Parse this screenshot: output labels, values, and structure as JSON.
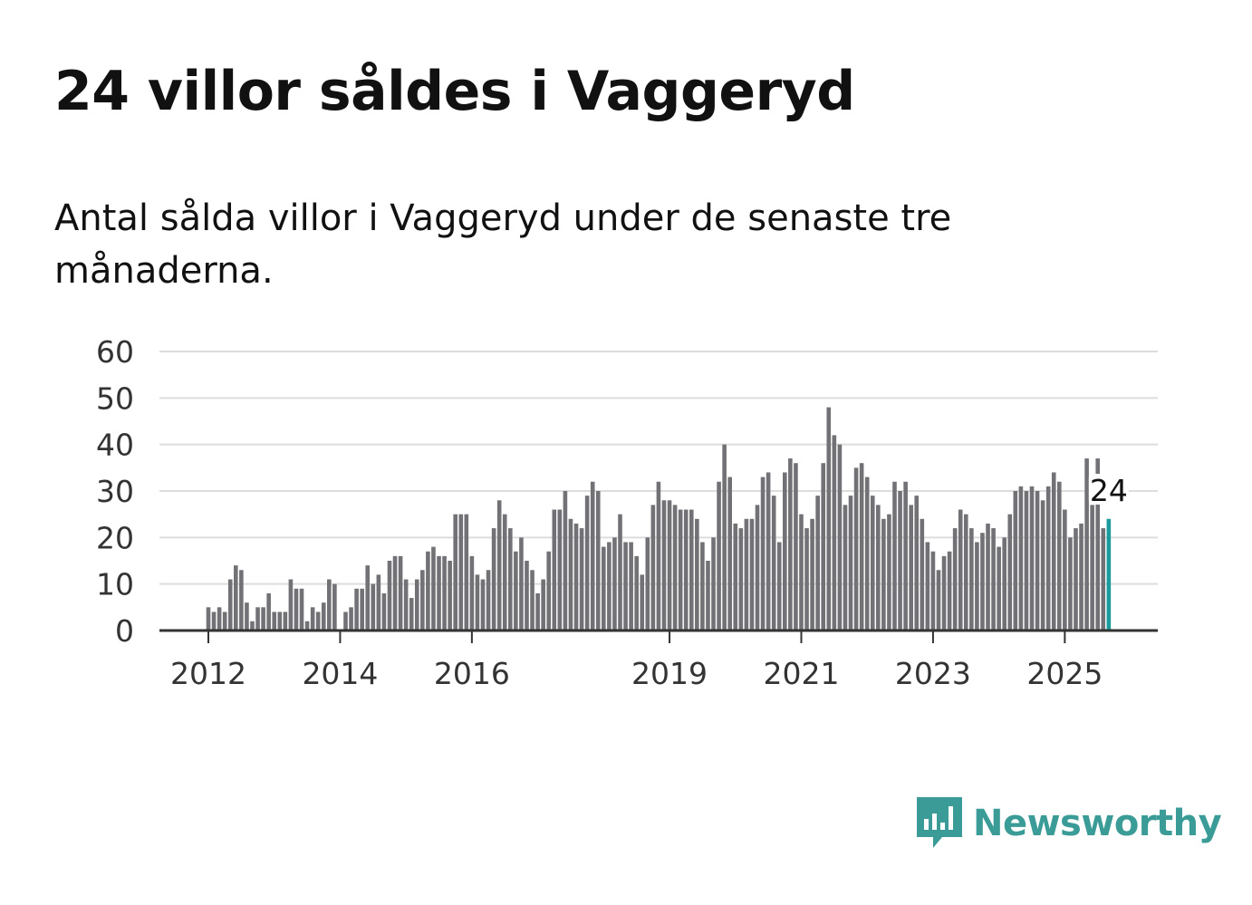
{
  "title": "24 villor såldes i Vaggeryd",
  "subtitle": "Antal sålda villor i Vaggeryd under de senaste tre månaderna.",
  "brand": {
    "name": "Newsworthy",
    "color": "#3b9b97"
  },
  "colors": {
    "bar": "#727176",
    "highlight": "#1b9b9c",
    "grid": "#dddddd",
    "axis": "#333333"
  },
  "chart_data": {
    "type": "bar",
    "title": "24 villor såldes i Vaggeryd",
    "xlabel": "",
    "ylabel": "",
    "ylim": [
      0,
      60
    ],
    "yticks": [
      0,
      10,
      20,
      30,
      40,
      50,
      60
    ],
    "xticks": [
      {
        "label": "2012",
        "index": 0
      },
      {
        "label": "2014",
        "index": 24
      },
      {
        "label": "2016",
        "index": 48
      },
      {
        "label": "2019",
        "index": 84
      },
      {
        "label": "2021",
        "index": 108
      },
      {
        "label": "2023",
        "index": 132
      },
      {
        "label": "2025",
        "index": 156
      }
    ],
    "first_month": "2012-01",
    "values": [
      5,
      4,
      5,
      4,
      11,
      14,
      13,
      6,
      2,
      5,
      5,
      8,
      4,
      4,
      4,
      11,
      9,
      9,
      2,
      5,
      4,
      6,
      11,
      10,
      0,
      4,
      5,
      9,
      9,
      14,
      10,
      12,
      8,
      15,
      16,
      16,
      11,
      7,
      11,
      13,
      17,
      18,
      16,
      16,
      15,
      25,
      25,
      25,
      16,
      12,
      11,
      13,
      22,
      28,
      25,
      22,
      17,
      20,
      15,
      13,
      8,
      11,
      17,
      26,
      26,
      30,
      24,
      23,
      22,
      29,
      32,
      30,
      18,
      19,
      20,
      25,
      19,
      19,
      16,
      12,
      20,
      27,
      32,
      28,
      28,
      27,
      26,
      26,
      26,
      24,
      19,
      15,
      20,
      32,
      40,
      33,
      23,
      22,
      24,
      24,
      27,
      33,
      34,
      29,
      19,
      34,
      37,
      36,
      25,
      22,
      24,
      29,
      36,
      48,
      42,
      40,
      27,
      29,
      35,
      36,
      33,
      29,
      27,
      24,
      25,
      32,
      30,
      32,
      27,
      29,
      24,
      19,
      17,
      13,
      16,
      17,
      22,
      26,
      25,
      22,
      19,
      21,
      23,
      22,
      18,
      20,
      25,
      30,
      31,
      30,
      31,
      30,
      28,
      31,
      34,
      32,
      26,
      20,
      22,
      23,
      37,
      27,
      37,
      22,
      24
    ],
    "highlight_index": 164,
    "highlight_label": "24"
  }
}
